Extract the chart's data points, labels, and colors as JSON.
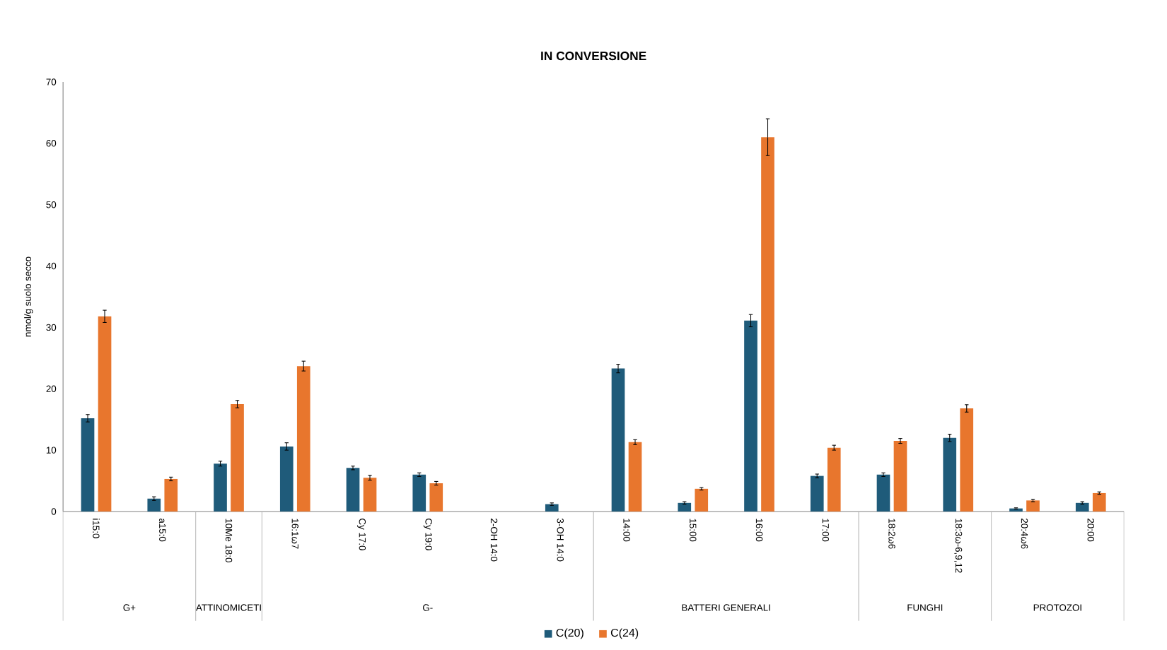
{
  "chart_data": {
    "type": "bar",
    "title": "IN CONVERSIONE",
    "ylabel": "nmol/g suolo secco",
    "categories": [
      "i15:0",
      "a15:0",
      "10Me 18:0",
      "16:1ω7",
      "Cy 17:0",
      "Cy 19:0",
      "2-OH 14:0",
      "3-OH 14:0",
      "14:00",
      "15:00",
      "16:00",
      "17:00",
      "18:2ω6",
      "18:3ω-6,9,12",
      "20:4ω6",
      "20:00"
    ],
    "series": [
      {
        "name": "C(20)",
        "color": "#1f5b7a",
        "values": [
          15.2,
          2.1,
          7.8,
          10.6,
          7.1,
          6.0,
          null,
          1.2,
          23.3,
          1.4,
          31.1,
          5.8,
          6.0,
          12.0,
          0.5,
          1.4
        ],
        "errors": [
          0.6,
          0.3,
          0.4,
          0.6,
          0.3,
          0.3,
          null,
          0.2,
          0.7,
          0.2,
          1.0,
          0.3,
          0.3,
          0.6,
          0.1,
          0.2
        ]
      },
      {
        "name": "C(24)",
        "color": "#e8762d",
        "values": [
          31.8,
          5.3,
          17.5,
          23.7,
          5.5,
          4.6,
          null,
          null,
          11.3,
          3.7,
          61.0,
          10.4,
          11.5,
          16.8,
          1.8,
          3.0
        ],
        "errors": [
          1.0,
          0.3,
          0.6,
          0.8,
          0.4,
          0.3,
          null,
          null,
          0.4,
          0.2,
          3.0,
          0.4,
          0.4,
          0.6,
          0.2,
          0.2
        ]
      }
    ],
    "annotations": [
      "G+",
      "ATTINOMICETI",
      "G-",
      "BATTERI GENERALI",
      "FUNGHI",
      "PROTOZOI"
    ],
    "ylim": [
      0,
      70
    ],
    "yticks": [
      0,
      10,
      20,
      30,
      40,
      50,
      60,
      70
    ],
    "grid": false,
    "legend": "bottom"
  }
}
